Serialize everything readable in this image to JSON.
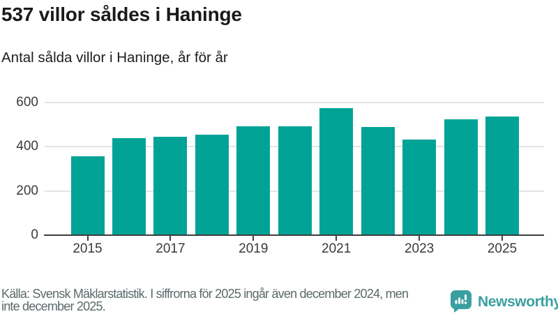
{
  "header": {
    "title": "537 villor såldes i Haninge",
    "subtitle": "Antal sålda villor i Haninge, år för år"
  },
  "chart_data": {
    "type": "bar",
    "title": "537 villor såldes i Haninge",
    "subtitle": "Antal sålda villor i Haninge, år för år",
    "categories": [
      2015,
      2016,
      2017,
      2018,
      2019,
      2020,
      2021,
      2022,
      2023,
      2024,
      2025
    ],
    "values": [
      358,
      438,
      445,
      456,
      492,
      492,
      576,
      490,
      432,
      525,
      537
    ],
    "xlabel": "",
    "ylabel": "",
    "ylim": [
      0,
      600
    ],
    "yticks": [
      0,
      200,
      400,
      600
    ],
    "xtick_labels": [
      "2015",
      "2017",
      "2019",
      "2021",
      "2023",
      "2025"
    ],
    "grid": "horizontal",
    "legend": "none",
    "bar_color": "#00a396",
    "axis_color": "#3d3d3d",
    "gridline_color": "#e4e4e4"
  },
  "footer": {
    "line1": "Källa: Svensk Mäklarstatistik. I siffrorna för 2025 ingår även december 2024, men",
    "line2": "inte december 2025."
  },
  "logo": {
    "text": "Newsworthy",
    "color": "#3a9fa0"
  }
}
